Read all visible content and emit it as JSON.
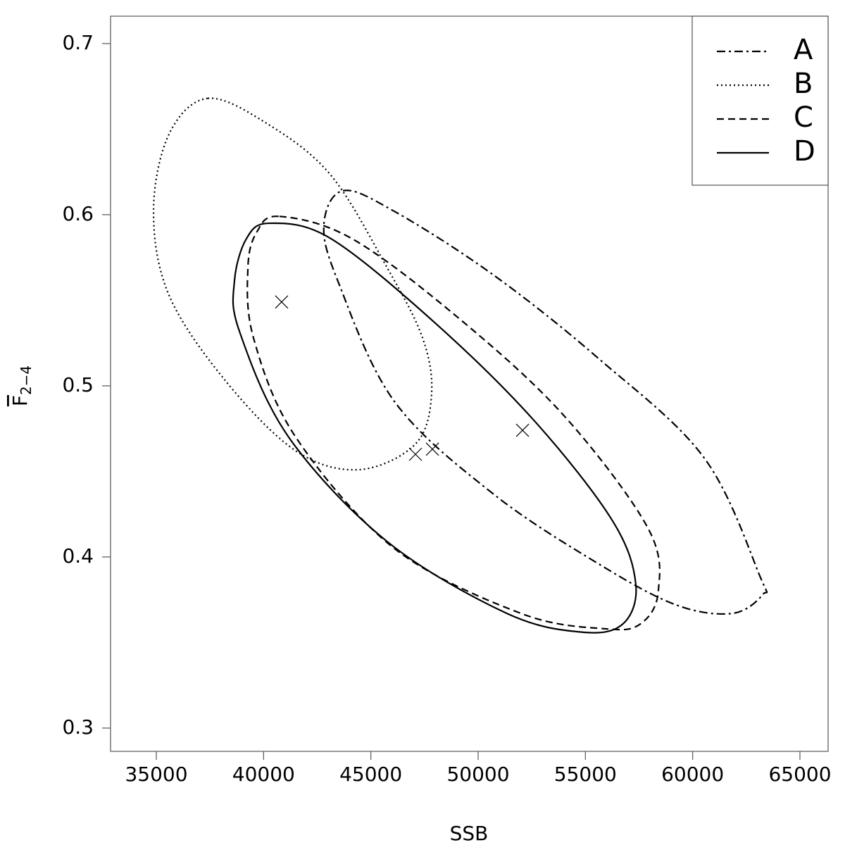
{
  "chart_data": {
    "type": "ellipse",
    "xlabel": "SSB",
    "ylabel": "F",
    "ylabel_subscript": "2−4",
    "xlim": [
      32867,
      66313
    ],
    "ylim": [
      0.2864,
      0.716
    ],
    "xticks": [
      35000,
      40000,
      45000,
      50000,
      55000,
      60000,
      65000
    ],
    "yticks": [
      0.3,
      0.4,
      0.5,
      0.6,
      0.7
    ],
    "legend": "top-right",
    "series": [
      {
        "name": "A",
        "color": "#000000",
        "linestyle": "dashdot",
        "x": [
          43700,
          46090,
          50690,
          55610,
          60530,
          63160,
          63260,
          61850,
          59220,
          55610,
          50690,
          46090,
          43470,
          42810
        ],
        "values": [
          0.614,
          0.602,
          0.565,
          0.516,
          0.458,
          0.388,
          0.378,
          0.367,
          0.372,
          0.396,
          0.437,
          0.491,
          0.561,
          0.594
        ]
      },
      {
        "name": "B",
        "color": "#000000",
        "linestyle": "dotted",
        "x": [
          37400,
          40190,
          43140,
          45760,
          47410,
          47830,
          47080,
          44450,
          41500,
          38220,
          35590,
          34870,
          35590
        ],
        "values": [
          0.668,
          0.653,
          0.623,
          0.569,
          0.528,
          0.495,
          0.466,
          0.451,
          0.462,
          0.503,
          0.553,
          0.602,
          0.647
        ]
      },
      {
        "name": "C",
        "color": "#000000",
        "linestyle": "dashed",
        "x": [
          40740,
          44120,
          49050,
          53970,
          57910,
          58400,
          57580,
          55940,
          52000,
          46090,
          41500,
          39530,
          39270,
          39690
        ],
        "values": [
          0.599,
          0.586,
          0.54,
          0.483,
          0.417,
          0.38,
          0.361,
          0.358,
          0.367,
          0.405,
          0.47,
          0.528,
          0.569,
          0.59
        ]
      },
      {
        "name": "D",
        "color": "#000000",
        "linestyle": "solid",
        "x": [
          40280,
          43140,
          48060,
          52660,
          56270,
          57350,
          56760,
          54890,
          51340,
          45760,
          41170,
          38870,
          38640,
          39200
        ],
        "values": [
          0.595,
          0.586,
          0.536,
          0.479,
          0.421,
          0.384,
          0.361,
          0.356,
          0.367,
          0.409,
          0.47,
          0.532,
          0.561,
          0.586
        ]
      }
    ],
    "points": {
      "x": [
        40840,
        47080,
        47870,
        52070
      ],
      "values": [
        0.549,
        0.46,
        0.463,
        0.474
      ],
      "color": "#000000"
    }
  }
}
